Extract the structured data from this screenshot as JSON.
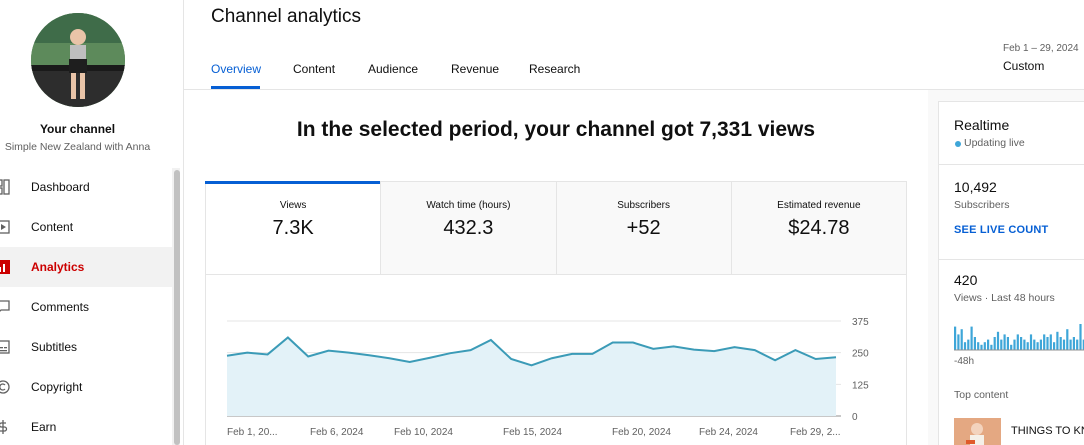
{
  "sidebar": {
    "channel_name": "Your channel",
    "channel_subtitle": "Simple New Zealand with Anna",
    "items": [
      {
        "label": "Dashboard",
        "icon": "dashboard-icon"
      },
      {
        "label": "Content",
        "icon": "content-icon"
      },
      {
        "label": "Analytics",
        "icon": "analytics-icon",
        "active": true
      },
      {
        "label": "Comments",
        "icon": "comments-icon"
      },
      {
        "label": "Subtitles",
        "icon": "subtitles-icon"
      },
      {
        "label": "Copyright",
        "icon": "copyright-icon"
      },
      {
        "label": "Earn",
        "icon": "earn-icon"
      }
    ]
  },
  "header": {
    "title": "Channel analytics",
    "tabs": [
      "Overview",
      "Content",
      "Audience",
      "Revenue",
      "Research"
    ],
    "active_tab": "Overview",
    "date_range": "Feb 1 – 29, 2024",
    "period_type": "Custom"
  },
  "main": {
    "headline": "In the selected period, your channel got 7,331 views",
    "metrics": [
      {
        "label": "Views",
        "value": "7.3K"
      },
      {
        "label": "Watch time (hours)",
        "value": "432.3"
      },
      {
        "label": "Subscribers",
        "value": "+52"
      },
      {
        "label": "Estimated revenue",
        "value": "$24.78"
      }
    ]
  },
  "chart_data": {
    "type": "area",
    "series": [
      {
        "values": [
          238,
          250,
          243,
          310,
          235,
          258,
          250,
          240,
          228,
          213,
          230,
          248,
          260,
          300,
          225,
          200,
          228,
          245,
          245,
          290,
          290,
          265,
          275,
          262,
          256,
          272,
          260,
          220,
          260,
          225,
          232
        ]
      }
    ],
    "x_tick_labels": [
      "Feb 1, 20...",
      "Feb 6, 2024",
      "Feb 10, 2024",
      "Feb 15, 2024",
      "Feb 20, 2024",
      "Feb 24, 2024",
      "Feb 29, 2..."
    ],
    "y_ticks": [
      0,
      125,
      250,
      375
    ],
    "ylim": [
      0,
      375
    ],
    "grid": true,
    "colors": {
      "line": "#3b9bb7",
      "fill": "#e3f2f8"
    }
  },
  "realtime": {
    "title": "Realtime",
    "status": "Updating live",
    "subscribers_value": "10,492",
    "subscribers_label": "Subscribers",
    "live_count_link": "SEE LIVE COUNT",
    "views_value": "420",
    "views_label": "Views · Last 48 hours",
    "bar_values": [
      9,
      6,
      8,
      3,
      4,
      9,
      5,
      3,
      2,
      3,
      4,
      2,
      5,
      7,
      4,
      6,
      5,
      2,
      4,
      6,
      5,
      4,
      3,
      6,
      4,
      3,
      4,
      6,
      5,
      6,
      3,
      7,
      5,
      4,
      8,
      4,
      5,
      4,
      10,
      4
    ],
    "axis_start_label": "-48h",
    "top_content_label": "Top content",
    "top_content_title": "THINGS TO KNO"
  }
}
